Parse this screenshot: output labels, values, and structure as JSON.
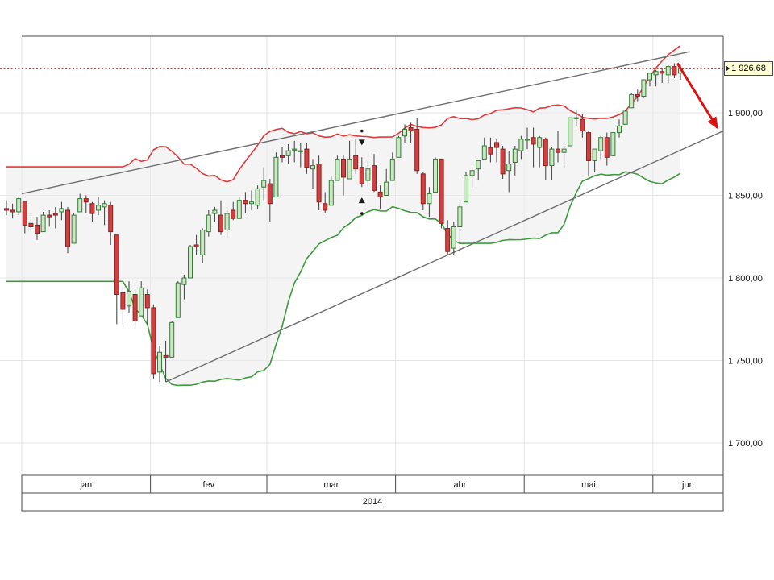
{
  "chart_data": {
    "type": "candlestick",
    "x_axis": {
      "year_label": "2014",
      "months": [
        {
          "label": "jan",
          "start_index": 3
        },
        {
          "label": "fev",
          "start_index": 24
        },
        {
          "label": "mar",
          "start_index": 43
        },
        {
          "label": "abr",
          "start_index": 64
        },
        {
          "label": "mai",
          "start_index": 85
        },
        {
          "label": "jun",
          "start_index": 106
        }
      ]
    },
    "y_axis": {
      "current_price": 1926.68,
      "current_price_label": "1 926,68",
      "ticks": [
        {
          "label": "1 900,00",
          "price": 1900
        },
        {
          "label": "1 850,00",
          "price": 1850
        },
        {
          "label": "1 800,00",
          "price": 1800
        },
        {
          "label": "1 750,00",
          "price": 1750
        },
        {
          "label": "1 700,00",
          "price": 1700
        }
      ],
      "ylim": [
        1681,
        1946
      ]
    },
    "candles": [
      [
        1842,
        1847,
        1838,
        1841
      ],
      [
        1841,
        1845,
        1836,
        1840
      ],
      [
        1840,
        1849,
        1838,
        1848
      ],
      [
        1846,
        1846,
        1827,
        1832
      ],
      [
        1833,
        1838,
        1828,
        1831
      ],
      [
        1832,
        1837,
        1823,
        1827
      ],
      [
        1828,
        1840,
        1828,
        1838
      ],
      [
        1838,
        1841,
        1831,
        1837
      ],
      [
        1839,
        1843,
        1830,
        1838
      ],
      [
        1840,
        1846,
        1835,
        1842
      ],
      [
        1841,
        1843,
        1815,
        1819
      ],
      [
        1821,
        1839,
        1821,
        1838
      ],
      [
        1840,
        1851,
        1840,
        1848
      ],
      [
        1848,
        1850,
        1839,
        1846
      ],
      [
        1845,
        1846,
        1834,
        1839
      ],
      [
        1841,
        1849,
        1838,
        1844
      ],
      [
        1843,
        1847,
        1832,
        1845
      ],
      [
        1844,
        1846,
        1820,
        1828
      ],
      [
        1826,
        1826,
        1772,
        1790
      ],
      [
        1791,
        1795,
        1772,
        1781
      ],
      [
        1783,
        1798,
        1779,
        1792
      ],
      [
        1790,
        1793,
        1770,
        1774
      ],
      [
        1777,
        1798,
        1777,
        1794
      ],
      [
        1790,
        1793,
        1772,
        1782
      ],
      [
        1782,
        1784,
        1739,
        1742
      ],
      [
        1743,
        1759,
        1737,
        1755
      ],
      [
        1753,
        1762,
        1737,
        1752
      ],
      [
        1752,
        1774,
        1752,
        1773
      ],
      [
        1776,
        1798,
        1776,
        1797
      ],
      [
        1796,
        1802,
        1787,
        1800
      ],
      [
        1800,
        1820,
        1800,
        1819
      ],
      [
        1820,
        1826,
        1814,
        1819
      ],
      [
        1814,
        1830,
        1809,
        1829
      ],
      [
        1828,
        1841,
        1825,
        1838
      ],
      [
        1839,
        1843,
        1834,
        1841
      ],
      [
        1838,
        1847,
        1826,
        1828
      ],
      [
        1829,
        1842,
        1824,
        1839
      ],
      [
        1841,
        1846,
        1835,
        1836
      ],
      [
        1836,
        1849,
        1836,
        1847
      ],
      [
        1847,
        1852,
        1839,
        1845
      ],
      [
        1845,
        1853,
        1841,
        1846
      ],
      [
        1844,
        1856,
        1842,
        1854
      ],
      [
        1855,
        1867,
        1847,
        1859
      ],
      [
        1857,
        1860,
        1834,
        1845
      ],
      [
        1849,
        1876,
        1849,
        1873
      ],
      [
        1874,
        1879,
        1870,
        1873
      ],
      [
        1874,
        1881,
        1869,
        1877
      ],
      [
        1878,
        1883,
        1870,
        1878
      ],
      [
        1877,
        1882,
        1867,
        1877
      ],
      [
        1878,
        1882,
        1863,
        1867
      ],
      [
        1866,
        1872,
        1854,
        1868
      ],
      [
        1869,
        1874,
        1841,
        1846
      ],
      [
        1845,
        1852,
        1839,
        1841
      ],
      [
        1844,
        1862,
        1844,
        1859
      ],
      [
        1859,
        1874,
        1859,
        1872
      ],
      [
        1872,
        1874,
        1850,
        1861
      ],
      [
        1860,
        1883,
        1860,
        1872
      ],
      [
        1874,
        1884,
        1863,
        1866
      ],
      [
        1867,
        1873,
        1855,
        1857
      ],
      [
        1859,
        1871,
        1855,
        1866
      ],
      [
        1868,
        1875,
        1852,
        1853
      ],
      [
        1852,
        1856,
        1842,
        1849
      ],
      [
        1850,
        1866,
        1850,
        1858
      ],
      [
        1859,
        1876,
        1859,
        1872
      ],
      [
        1873,
        1886,
        1873,
        1885
      ],
      [
        1886,
        1893,
        1882,
        1890
      ],
      [
        1891,
        1894,
        1882,
        1889
      ],
      [
        1890,
        1897,
        1863,
        1865
      ],
      [
        1863,
        1864,
        1841,
        1845
      ],
      [
        1845,
        1855,
        1837,
        1851
      ],
      [
        1852,
        1873,
        1852,
        1872
      ],
      [
        1872,
        1872,
        1830,
        1833
      ],
      [
        1830,
        1835,
        1814,
        1816
      ],
      [
        1818,
        1834,
        1814,
        1831
      ],
      [
        1831,
        1845,
        1816,
        1843
      ],
      [
        1846,
        1864,
        1846,
        1862
      ],
      [
        1862,
        1867,
        1855,
        1865
      ],
      [
        1866,
        1871,
        1859,
        1871
      ],
      [
        1872,
        1885,
        1872,
        1880
      ],
      [
        1879,
        1885,
        1870,
        1875
      ],
      [
        1882,
        1884,
        1870,
        1879
      ],
      [
        1878,
        1880,
        1860,
        1863
      ],
      [
        1865,
        1877,
        1852,
        1869
      ],
      [
        1870,
        1880,
        1862,
        1878
      ],
      [
        1877,
        1886,
        1872,
        1884
      ],
      [
        1884,
        1891,
        1878,
        1884
      ],
      [
        1885,
        1891,
        1867,
        1881
      ],
      [
        1879,
        1886,
        1867,
        1885
      ],
      [
        1884,
        1885,
        1859,
        1868
      ],
      [
        1868,
        1879,
        1859,
        1878
      ],
      [
        1878,
        1889,
        1870,
        1876
      ],
      [
        1876,
        1880,
        1867,
        1878
      ],
      [
        1880,
        1897,
        1880,
        1897
      ],
      [
        1897,
        1902,
        1892,
        1897
      ],
      [
        1896,
        1899,
        1885,
        1889
      ],
      [
        1888,
        1889,
        1862,
        1871
      ],
      [
        1871,
        1878,
        1864,
        1878
      ],
      [
        1877,
        1886,
        1872,
        1885
      ],
      [
        1885,
        1888,
        1868,
        1873
      ],
      [
        1874,
        1888,
        1874,
        1888
      ],
      [
        1888,
        1896,
        1885,
        1892
      ],
      [
        1893,
        1902,
        1893,
        1901
      ],
      [
        1903,
        1912,
        1903,
        1911
      ],
      [
        1911,
        1914,
        1907,
        1910
      ],
      [
        1910,
        1920,
        1909,
        1920
      ],
      [
        1920,
        1924,
        1916,
        1924
      ],
      [
        1923,
        1926,
        1916,
        1925
      ],
      [
        1925,
        1927,
        1918,
        1924
      ],
      [
        1923,
        1929,
        1918,
        1928
      ],
      [
        1928,
        1930,
        1921,
        1923
      ],
      [
        1924,
        1929,
        1920,
        1926.68
      ]
    ],
    "overlays": {
      "bollinger": {
        "period": 20,
        "stddev": 2,
        "upper_color": "#e03a3a",
        "lower_color": "#3c9b3c",
        "fill_color": "#ececec"
      },
      "trendlines": [
        {
          "name": "channel-upper",
          "i1": 2.5,
          "p1": 1851,
          "i2": 111.5,
          "p2": 1937,
          "color": "#6e6e6e"
        },
        {
          "name": "channel-lower",
          "i1": 26,
          "p1": 1737,
          "i2": 117,
          "p2": 1889,
          "color": "#6e6e6e"
        }
      ],
      "alert_line": {
        "price": 1926.68,
        "color": "#ff2222",
        "style": "dotted"
      },
      "arrow": {
        "i1": 109.5,
        "p1": 1930,
        "i2": 116,
        "p2": 1891,
        "color": "#dd1111"
      },
      "markers": [
        {
          "type": "dot",
          "index": 58,
          "price": 1889
        },
        {
          "type": "triangle-down",
          "index": 58,
          "price": 1882
        },
        {
          "type": "triangle-up",
          "index": 58,
          "price": 1847
        },
        {
          "type": "dot",
          "index": 58,
          "price": 1839
        }
      ]
    },
    "colors": {
      "up_fill": "#cfe6c6",
      "up_stroke": "#2e7d32",
      "down_fill": "#cf4040",
      "down_stroke": "#8e1f1f",
      "wick": "#3c3c3c",
      "grid": "#e4e4e4",
      "frame": "#4a4a4a",
      "background": "#ffffff"
    }
  }
}
